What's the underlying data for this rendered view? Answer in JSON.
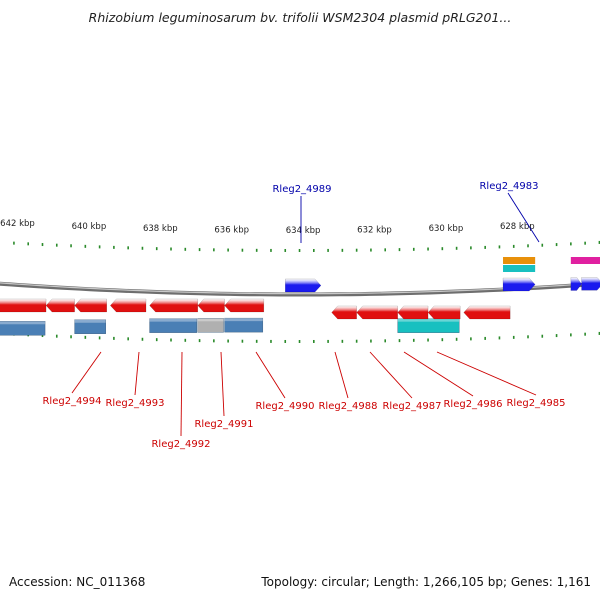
{
  "title": "Rhizobium leguminosarum bv. trifolii WSM2304 plasmid pRLG201...",
  "footer": {
    "accession": "Accession: NC_011368",
    "summary": "Topology: circular; Length: 1,266,105 bp; Genes: 1,161"
  },
  "scale": {
    "unit": "kbp",
    "labels": [
      "642 kbp",
      "640 kbp",
      "638 kbp",
      "636 kbp",
      "634 kbp",
      "632 kbp",
      "630 kbp",
      "628 kbp"
    ],
    "tick_positions": [
      642,
      640,
      638,
      636,
      634,
      632,
      630,
      628
    ]
  },
  "colors": {
    "backbone": "#8a8a8a",
    "tick": "#2a8a2a",
    "forward_gene": "#1a1aee",
    "reverse_gene": "#e01010",
    "forward_label": "#0000aa",
    "reverse_label": "#cc0000",
    "feature_steelblue": "#4a7fb5",
    "feature_gray": "#b0b0b0",
    "feature_cyan": "#18c0c0",
    "feature_orange": "#e8900a",
    "feature_magenta": "#e020a0"
  },
  "genes": {
    "forward": [
      {
        "id": "fwd1",
        "start_kbp": 634.5,
        "end_kbp": 633.5,
        "label": "Rleg2_4989"
      },
      {
        "id": "fwd2",
        "start_kbp": 628.4,
        "end_kbp": 627.5,
        "label": "Rleg2_4983"
      },
      {
        "id": "fwd3",
        "start_kbp": 626.5,
        "end_kbp": 626.2,
        "label": ""
      },
      {
        "id": "fwd4",
        "start_kbp": 626.2,
        "end_kbp": 625.6,
        "label": ""
      }
    ],
    "reverse": [
      {
        "id": "r1",
        "start_kbp": 643.0,
        "end_kbp": 641.2,
        "label": ""
      },
      {
        "id": "r2",
        "start_kbp": 641.2,
        "end_kbp": 640.4,
        "label": ""
      },
      {
        "id": "r3",
        "start_kbp": 640.4,
        "end_kbp": 639.5,
        "label": "Rleg2_4994"
      },
      {
        "id": "r4",
        "start_kbp": 639.4,
        "end_kbp": 638.4,
        "label": "Rleg2_4993"
      },
      {
        "id": "r5",
        "start_kbp": 638.3,
        "end_kbp": 636.95,
        "label": "Rleg2_4992"
      },
      {
        "id": "r6",
        "start_kbp": 636.95,
        "end_kbp": 636.2,
        "label": "Rleg2_4991"
      },
      {
        "id": "r7",
        "start_kbp": 636.2,
        "end_kbp": 635.1,
        "label": "Rleg2_4990"
      },
      {
        "id": "r8",
        "start_kbp": 633.2,
        "end_kbp": 632.5,
        "label": "Rleg2_4988"
      },
      {
        "id": "r9",
        "start_kbp": 632.5,
        "end_kbp": 631.35,
        "label": "Rleg2_4987"
      },
      {
        "id": "r10",
        "start_kbp": 631.35,
        "end_kbp": 630.5,
        "label": "Rleg2_4986"
      },
      {
        "id": "r11",
        "start_kbp": 630.5,
        "end_kbp": 629.6,
        "label": "Rleg2_4985"
      },
      {
        "id": "r12",
        "start_kbp": 629.5,
        "end_kbp": 628.2,
        "label": ""
      }
    ]
  },
  "features": {
    "above": [
      {
        "id": "fa1",
        "start_kbp": 628.4,
        "end_kbp": 627.5,
        "color": "#e8900a",
        "row": 0
      },
      {
        "id": "fa2",
        "start_kbp": 628.4,
        "end_kbp": 627.5,
        "color": "#18c0c0",
        "row": 1
      },
      {
        "id": "fa3",
        "start_kbp": 626.5,
        "end_kbp": 625.6,
        "color": "#e020a0",
        "row": 0
      }
    ],
    "below": [
      {
        "id": "fb1",
        "start_kbp": 643.0,
        "end_kbp": 641.2,
        "color": "#4a7fb5"
      },
      {
        "id": "fb2",
        "start_kbp": 640.4,
        "end_kbp": 639.5,
        "color": "#4a7fb5"
      },
      {
        "id": "fb3",
        "start_kbp": 638.3,
        "end_kbp": 636.95,
        "color": "#4a7fb5"
      },
      {
        "id": "fb4",
        "start_kbp": 636.95,
        "end_kbp": 636.2,
        "color": "#b0b0b0"
      },
      {
        "id": "fb5",
        "start_kbp": 636.2,
        "end_kbp": 635.1,
        "color": "#4a7fb5"
      },
      {
        "id": "fb6",
        "start_kbp": 631.35,
        "end_kbp": 629.6,
        "color": "#18c0c0"
      }
    ]
  }
}
